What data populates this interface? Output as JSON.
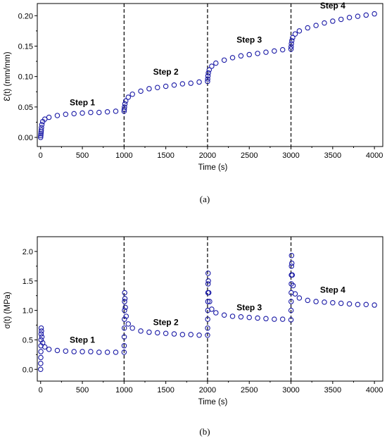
{
  "colors": {
    "marker": "#1a1aa6",
    "axis": "#000000",
    "divider": "#000000"
  },
  "chart_data": [
    {
      "type": "scatter",
      "panel_label": "(a)",
      "xlabel": "Time (s)",
      "ylabel": "Ɛ(t) (mm/mm)",
      "xlim": [
        -40,
        4100
      ],
      "ylim": [
        -0.015,
        0.22
      ],
      "xticks": [
        0,
        500,
        1000,
        1500,
        2000,
        2500,
        3000,
        3500,
        4000
      ],
      "yticks": [
        0.0,
        0.05,
        0.1,
        0.15,
        0.2
      ],
      "yticks_labels": [
        "0.00",
        "0.05",
        "0.10",
        "0.15",
        "0.20"
      ],
      "step_boundaries": [
        1000,
        2000,
        3000
      ],
      "annotations": [
        {
          "text": "Step 1",
          "x": 500,
          "y": 0.053
        },
        {
          "text": "Step 2",
          "x": 1500,
          "y": 0.103
        },
        {
          "text": "Step 3",
          "x": 2500,
          "y": 0.156
        },
        {
          "text": "Step 4",
          "x": 3500,
          "y": 0.212
        }
      ],
      "series": [
        {
          "points": [
            [
              0,
              0.0
            ],
            [
              2,
              0.003
            ],
            [
              4,
              0.006
            ],
            [
              6,
              0.009
            ],
            [
              8,
              0.012
            ],
            [
              10,
              0.016
            ],
            [
              15,
              0.021
            ],
            [
              25,
              0.026
            ],
            [
              50,
              0.03
            ],
            [
              100,
              0.033
            ],
            [
              200,
              0.036
            ],
            [
              300,
              0.038
            ],
            [
              400,
              0.039
            ],
            [
              500,
              0.04
            ],
            [
              600,
              0.041
            ],
            [
              700,
              0.041
            ],
            [
              800,
              0.042
            ],
            [
              900,
              0.043
            ],
            [
              1000,
              0.043
            ],
            [
              1002,
              0.046
            ],
            [
              1005,
              0.05
            ],
            [
              1010,
              0.055
            ],
            [
              1020,
              0.06
            ],
            [
              1050,
              0.066
            ],
            [
              1100,
              0.071
            ],
            [
              1200,
              0.076
            ],
            [
              1300,
              0.08
            ],
            [
              1400,
              0.082
            ],
            [
              1500,
              0.084
            ],
            [
              1600,
              0.086
            ],
            [
              1700,
              0.088
            ],
            [
              1800,
              0.089
            ],
            [
              1900,
              0.091
            ],
            [
              2000,
              0.092
            ],
            [
              2002,
              0.096
            ],
            [
              2005,
              0.101
            ],
            [
              2010,
              0.106
            ],
            [
              2020,
              0.111
            ],
            [
              2050,
              0.117
            ],
            [
              2100,
              0.122
            ],
            [
              2200,
              0.127
            ],
            [
              2300,
              0.131
            ],
            [
              2400,
              0.134
            ],
            [
              2500,
              0.136
            ],
            [
              2600,
              0.138
            ],
            [
              2700,
              0.14
            ],
            [
              2800,
              0.142
            ],
            [
              2900,
              0.144
            ],
            [
              3000,
              0.145
            ],
            [
              3002,
              0.149
            ],
            [
              3005,
              0.154
            ],
            [
              3010,
              0.159
            ],
            [
              3020,
              0.164
            ],
            [
              3050,
              0.17
            ],
            [
              3100,
              0.175
            ],
            [
              3200,
              0.18
            ],
            [
              3300,
              0.184
            ],
            [
              3400,
              0.188
            ],
            [
              3500,
              0.191
            ],
            [
              3600,
              0.194
            ],
            [
              3700,
              0.197
            ],
            [
              3800,
              0.199
            ],
            [
              3900,
              0.201
            ],
            [
              4000,
              0.203
            ]
          ]
        }
      ]
    },
    {
      "type": "scatter",
      "panel_label": "(b)",
      "xlabel": "Time (s)",
      "ylabel": "σ(t) (MPa)",
      "xlim": [
        -40,
        4100
      ],
      "ylim": [
        -0.2,
        2.25
      ],
      "xticks": [
        0,
        500,
        1000,
        1500,
        2000,
        2500,
        3000,
        3500,
        4000
      ],
      "yticks": [
        0.0,
        0.5,
        1.0,
        1.5,
        2.0
      ],
      "yticks_labels": [
        "0.0",
        "0.5",
        "1.0",
        "1.5",
        "2.0"
      ],
      "step_boundaries": [
        1000,
        2000,
        3000
      ],
      "annotations": [
        {
          "text": "Step 1",
          "x": 500,
          "y": 0.45
        },
        {
          "text": "Step 2",
          "x": 1500,
          "y": 0.75
        },
        {
          "text": "Step 3",
          "x": 2500,
          "y": 1.0
        },
        {
          "text": "Step 4",
          "x": 3500,
          "y": 1.3
        }
      ],
      "series": [
        {
          "points": [
            [
              0,
              0.0
            ],
            [
              1,
              0.1
            ],
            [
              2,
              0.2
            ],
            [
              3,
              0.3
            ],
            [
              4,
              0.4
            ],
            [
              5,
              0.5
            ],
            [
              6,
              0.6
            ],
            [
              7,
              0.7
            ],
            [
              10,
              0.65
            ],
            [
              15,
              0.55
            ],
            [
              25,
              0.45
            ],
            [
              50,
              0.38
            ],
            [
              100,
              0.34
            ],
            [
              200,
              0.32
            ],
            [
              300,
              0.31
            ],
            [
              400,
              0.3
            ],
            [
              500,
              0.3
            ],
            [
              600,
              0.3
            ],
            [
              700,
              0.29
            ],
            [
              800,
              0.29
            ],
            [
              900,
              0.29
            ],
            [
              1000,
              0.29
            ],
            [
              1001,
              0.4
            ],
            [
              1002,
              0.55
            ],
            [
              1003,
              0.7
            ],
            [
              1004,
              0.85
            ],
            [
              1005,
              1.0
            ],
            [
              1006,
              1.15
            ],
            [
              1007,
              1.3
            ],
            [
              1010,
              1.2
            ],
            [
              1015,
              1.05
            ],
            [
              1025,
              0.9
            ],
            [
              1050,
              0.77
            ],
            [
              1100,
              0.7
            ],
            [
              1200,
              0.65
            ],
            [
              1300,
              0.63
            ],
            [
              1400,
              0.62
            ],
            [
              1500,
              0.61
            ],
            [
              1600,
              0.6
            ],
            [
              1700,
              0.59
            ],
            [
              1800,
              0.59
            ],
            [
              1900,
              0.58
            ],
            [
              2000,
              0.58
            ],
            [
              2001,
              0.7
            ],
            [
              2002,
              0.85
            ],
            [
              2003,
              1.0
            ],
            [
              2004,
              1.15
            ],
            [
              2005,
              1.3
            ],
            [
              2006,
              1.45
            ],
            [
              2007,
              1.63
            ],
            [
              2010,
              1.5
            ],
            [
              2015,
              1.3
            ],
            [
              2025,
              1.15
            ],
            [
              2050,
              1.02
            ],
            [
              2100,
              0.96
            ],
            [
              2200,
              0.92
            ],
            [
              2300,
              0.9
            ],
            [
              2400,
              0.89
            ],
            [
              2500,
              0.88
            ],
            [
              2600,
              0.87
            ],
            [
              2700,
              0.86
            ],
            [
              2800,
              0.85
            ],
            [
              2900,
              0.85
            ],
            [
              3000,
              0.84
            ],
            [
              3001,
              1.0
            ],
            [
              3002,
              1.15
            ],
            [
              3003,
              1.3
            ],
            [
              3004,
              1.45
            ],
            [
              3005,
              1.6
            ],
            [
              3006,
              1.75
            ],
            [
              3007,
              1.93
            ],
            [
              3010,
              1.8
            ],
            [
              3015,
              1.6
            ],
            [
              3025,
              1.42
            ],
            [
              3050,
              1.28
            ],
            [
              3100,
              1.21
            ],
            [
              3200,
              1.17
            ],
            [
              3300,
              1.15
            ],
            [
              3400,
              1.14
            ],
            [
              3500,
              1.13
            ],
            [
              3600,
              1.12
            ],
            [
              3700,
              1.11
            ],
            [
              3800,
              1.1
            ],
            [
              3900,
              1.1
            ],
            [
              4000,
              1.09
            ]
          ]
        }
      ]
    }
  ]
}
